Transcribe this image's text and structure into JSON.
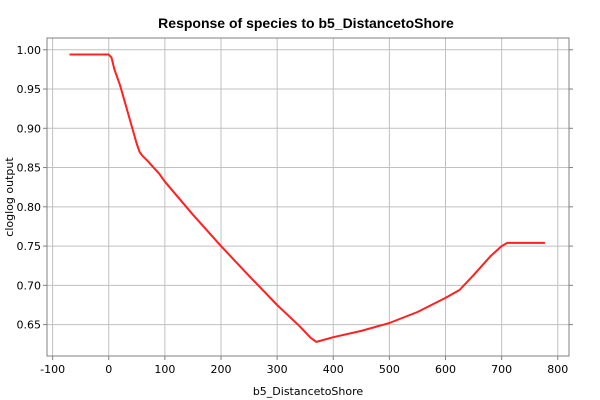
{
  "chart_data": {
    "type": "line",
    "title": "Response of species to b5_DistancetoShore",
    "xlabel": "b5_DistancetoShore",
    "ylabel": "cloglog output",
    "xlim": [
      -110,
      820
    ],
    "ylim": [
      0.61,
      1.015
    ],
    "xticks": [
      -100,
      0,
      100,
      200,
      300,
      400,
      500,
      600,
      700,
      800
    ],
    "xtick_labels": [
      "-100",
      "0",
      "100",
      "200",
      "300",
      "400",
      "500",
      "600",
      "700",
      "800"
    ],
    "yticks": [
      0.65,
      0.7,
      0.75,
      0.8,
      0.85,
      0.9,
      0.95,
      1.0
    ],
    "ytick_labels": [
      "0.65",
      "0.70",
      "0.75",
      "0.80",
      "0.85",
      "0.90",
      "0.95",
      "1.00"
    ],
    "grid": true,
    "series": [
      {
        "color": "#ff2020",
        "x": [
          -70,
          -30,
          0,
          5,
          10,
          20,
          30,
          40,
          50,
          55,
          60,
          70,
          80,
          90,
          100,
          150,
          200,
          250,
          300,
          340,
          360,
          370,
          400,
          450,
          500,
          550,
          600,
          625,
          650,
          680,
          700,
          710,
          740,
          777
        ],
        "y": [
          0.994,
          0.994,
          0.994,
          0.99,
          0.975,
          0.955,
          0.93,
          0.905,
          0.88,
          0.87,
          0.865,
          0.858,
          0.85,
          0.842,
          0.832,
          0.79,
          0.75,
          0.712,
          0.675,
          0.648,
          0.633,
          0.628,
          0.634,
          0.642,
          0.652,
          0.666,
          0.684,
          0.694,
          0.713,
          0.737,
          0.75,
          0.754,
          0.754,
          0.754
        ]
      }
    ]
  }
}
